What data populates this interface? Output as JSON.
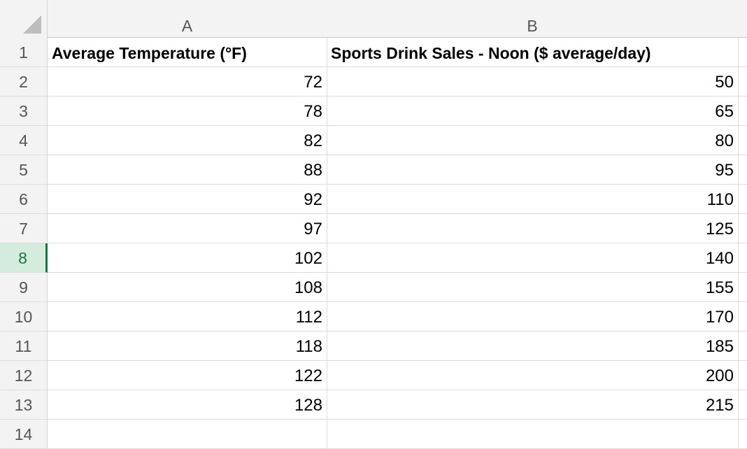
{
  "columns": [
    "A",
    "B"
  ],
  "selected_row": 8,
  "colors": {
    "selection": "#1e7145",
    "selection_bg": "#d3ecdd"
  },
  "headers": [
    "Average Temperature (°F)",
    "Sports Drink Sales - Noon ($ average/day)"
  ],
  "rows": [
    [
      72,
      50
    ],
    [
      78,
      65
    ],
    [
      82,
      80
    ],
    [
      88,
      95
    ],
    [
      92,
      110
    ],
    [
      97,
      125
    ],
    [
      102,
      140
    ],
    [
      108,
      155
    ],
    [
      112,
      170
    ],
    [
      118,
      185
    ],
    [
      122,
      200
    ],
    [
      128,
      215
    ]
  ]
}
